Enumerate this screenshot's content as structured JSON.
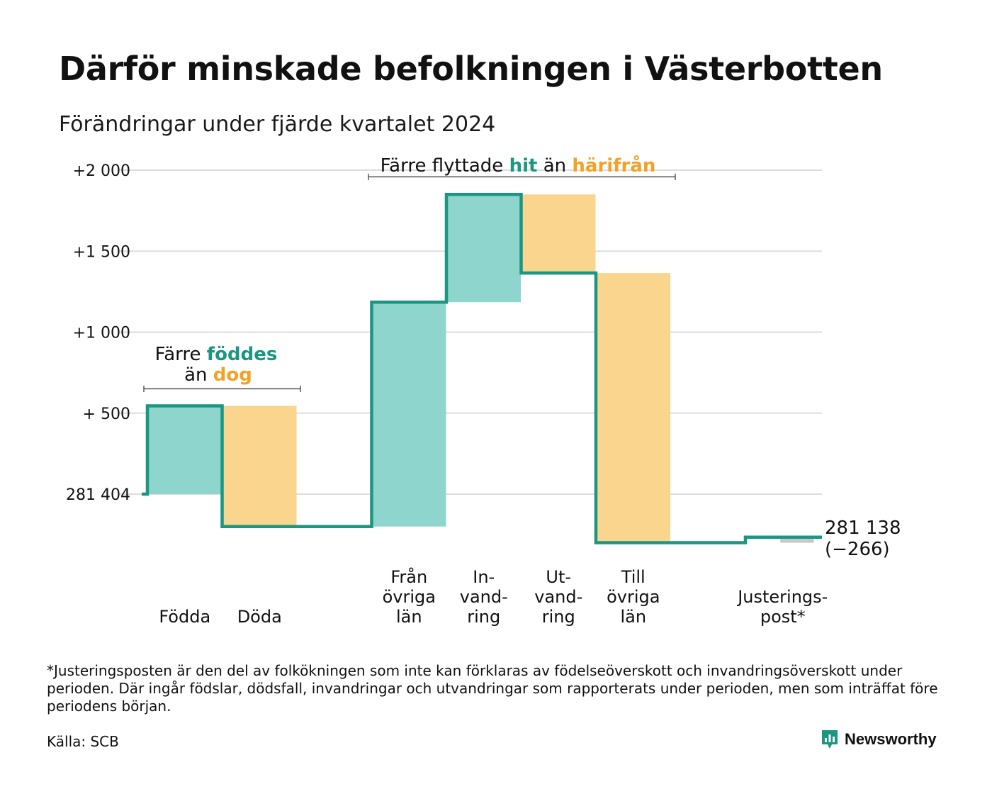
{
  "title": "Därför minskade befolkningen i Västerbotten",
  "subtitle": "Förändringar under fjärde kvartalet 2024",
  "annotations": {
    "births_deaths": {
      "prefix": "Färre",
      "highlight1": "föddes",
      "middle": "än",
      "highlight2": "dog"
    },
    "migration": {
      "prefix": "Färre flyttade",
      "highlight1": "hit",
      "middle": "än",
      "highlight2": "härifrån"
    }
  },
  "end_label": {
    "total": "281 138",
    "change": "(−266)"
  },
  "footnote": "*Justeringsposten är den del av folkökningen som inte kan förklaras av födelseöverskott och invandringsöverskott under perioden. Där ingår födslar, dödsfall, invandringar och utvandringar som rapporterats under perioden, men som inträffat före periodens början.",
  "source": "Källa: SCB",
  "brand": {
    "name": "Newsworthy",
    "icon": "newsworthy-logo-icon"
  },
  "colors": {
    "increase": "#8dd5cd",
    "decrease": "#fad58e",
    "line": "#1a9682",
    "highlight_increase": "#1a9682",
    "highlight_decrease": "#f3a227",
    "adjustment": "#c8c8c8",
    "grid": "#dddddd"
  },
  "chart_data": {
    "type": "waterfall",
    "start_value": 281404,
    "end_value": 281138,
    "net_change": -266,
    "y_ticks": [
      {
        "value": 0,
        "label": "281 404"
      },
      {
        "value": 500,
        "label": "+  500"
      },
      {
        "value": 1000,
        "label": "+1 000"
      },
      {
        "value": 1500,
        "label": "+1 500"
      },
      {
        "value": 2000,
        "label": "+2 000"
      }
    ],
    "ylim": [
      -300,
      2000
    ],
    "steps": [
      {
        "label": [
          "Födda"
        ],
        "change": 545,
        "kind": "increase"
      },
      {
        "label": [
          "Döda"
        ],
        "change": -745,
        "kind": "decrease"
      },
      {
        "label": [],
        "change": 0,
        "kind": "gap"
      },
      {
        "label": [
          "Från",
          "övriga",
          "län"
        ],
        "change": 1385,
        "kind": "increase"
      },
      {
        "label": [
          "In-",
          "vand-",
          "ring"
        ],
        "change": 665,
        "kind": "increase"
      },
      {
        "label": [
          "Ut-",
          "vand-",
          "ring"
        ],
        "change": -485,
        "kind": "decrease"
      },
      {
        "label": [
          "Till",
          "övriga",
          "län"
        ],
        "change": -1665,
        "kind": "decrease"
      },
      {
        "label": [],
        "change": 0,
        "kind": "gap"
      },
      {
        "label": [
          "Justerings-",
          "post*"
        ],
        "change": 34,
        "kind": "adjustment"
      }
    ]
  }
}
